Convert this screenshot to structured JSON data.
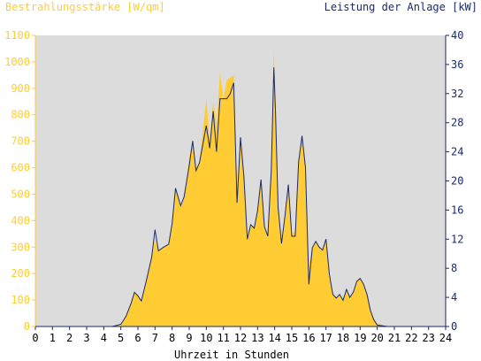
{
  "chart_data": {
    "type": "area",
    "left_axis_title": "Bestrahlungsstärke [W/qm]",
    "right_axis_title": "Leistung der Anlage [kW]",
    "xlabel": "Uhrzeit in Stunden",
    "x_ticks": [
      "0",
      "1",
      "2",
      "3",
      "4",
      "5",
      "6",
      "7",
      "8",
      "9",
      "10",
      "11",
      "12",
      "13",
      "14",
      "15",
      "16",
      "17",
      "18",
      "19",
      "20",
      "21",
      "22",
      "23",
      "24"
    ],
    "y_left_ticks": [
      "0",
      "100",
      "200",
      "300",
      "400",
      "500",
      "600",
      "700",
      "800",
      "900",
      "1000",
      "1100"
    ],
    "y_right_ticks": [
      "0",
      "4",
      "8",
      "12",
      "16",
      "20",
      "24",
      "28",
      "32",
      "36",
      "40"
    ],
    "ylim_left": [
      0,
      1100
    ],
    "ylim_right": [
      0,
      40
    ],
    "xlim": [
      0,
      24
    ],
    "grid": false,
    "colors": {
      "plot_bg": "#dcdcdc",
      "irradiance": "#ffcc33",
      "power": "#1a2a6c",
      "left_axis": "#ffcc33",
      "right_axis": "#1a2a6c",
      "xaxis_text": "#000000"
    },
    "series": [
      {
        "axis": "left",
        "color": "#ffcc33",
        "x": [
          0,
          4.5,
          5,
          5.3,
          5.6,
          5.8,
          6.0,
          6.2,
          6.5,
          6.8,
          7.0,
          7.2,
          7.5,
          7.8,
          8.0,
          8.2,
          8.5,
          8.7,
          9.0,
          9.2,
          9.4,
          9.6,
          9.8,
          10.0,
          10.2,
          10.4,
          10.6,
          10.8,
          11.0,
          11.2,
          11.4,
          11.6,
          11.8,
          12.0,
          12.2,
          12.4,
          12.6,
          12.8,
          13.0,
          13.2,
          13.4,
          13.6,
          13.8,
          13.95,
          14.05,
          14.2,
          14.4,
          14.6,
          14.8,
          15.0,
          15.2,
          15.4,
          15.6,
          15.8,
          16.0,
          16.2,
          16.4,
          16.6,
          16.8,
          17.0,
          17.2,
          17.4,
          17.6,
          17.8,
          18.0,
          18.2,
          18.4,
          18.6,
          18.8,
          19.0,
          19.2,
          19.4,
          19.6,
          19.8,
          20.0,
          20.3,
          20.6,
          21,
          24
        ],
        "values": [
          0,
          0,
          10,
          40,
          90,
          130,
          120,
          100,
          180,
          260,
          330,
          290,
          300,
          310,
          400,
          520,
          450,
          480,
          640,
          700,
          600,
          620,
          740,
          860,
          700,
          850,
          760,
          960,
          860,
          930,
          940,
          950,
          500,
          720,
          540,
          330,
          380,
          380,
          450,
          550,
          380,
          350,
          600,
          1060,
          800,
          450,
          320,
          420,
          530,
          350,
          360,
          620,
          720,
          600,
          230,
          300,
          320,
          300,
          290,
          330,
          200,
          130,
          110,
          120,
          100,
          140,
          110,
          130,
          170,
          180,
          160,
          120,
          70,
          30,
          10,
          5,
          0,
          0,
          0
        ]
      },
      {
        "axis": "right",
        "color": "#1a2a6c",
        "x": [
          0,
          4.5,
          5,
          5.3,
          5.6,
          5.8,
          6.0,
          6.2,
          6.5,
          6.8,
          7.0,
          7.2,
          7.5,
          7.8,
          8.0,
          8.2,
          8.5,
          8.7,
          9.0,
          9.2,
          9.4,
          9.6,
          9.8,
          10.0,
          10.2,
          10.4,
          10.6,
          10.8,
          11.0,
          11.2,
          11.4,
          11.6,
          11.8,
          12.0,
          12.2,
          12.4,
          12.6,
          12.8,
          13.0,
          13.2,
          13.4,
          13.6,
          13.8,
          13.95,
          14.05,
          14.2,
          14.4,
          14.6,
          14.8,
          15.0,
          15.2,
          15.4,
          15.6,
          15.8,
          16.0,
          16.2,
          16.4,
          16.6,
          16.8,
          17.0,
          17.2,
          17.4,
          17.6,
          17.8,
          18.0,
          18.2,
          18.4,
          18.6,
          18.8,
          19.0,
          19.2,
          19.4,
          19.6,
          19.8,
          20.0,
          20.3,
          20.6,
          21,
          24
        ],
        "values": [
          0,
          0,
          0.3,
          1.4,
          3.2,
          4.7,
          4.2,
          3.5,
          6.4,
          9.5,
          13.3,
          10.4,
          10.9,
          11.3,
          14.2,
          19.0,
          16.6,
          17.8,
          22.1,
          25.5,
          21.4,
          22.5,
          25.1,
          27.6,
          24.5,
          29.6,
          24.0,
          31.3,
          31.3,
          31.3,
          32.0,
          33.5,
          17.0,
          26.0,
          20.5,
          12.0,
          14.0,
          13.5,
          15.9,
          20.2,
          13.7,
          12.4,
          21.4,
          35.6,
          29.5,
          16.4,
          11.4,
          15.2,
          19.5,
          12.4,
          12.4,
          22.6,
          26.2,
          21.8,
          5.8,
          10.8,
          11.7,
          10.9,
          10.5,
          12.0,
          7.2,
          4.4,
          3.9,
          4.4,
          3.6,
          5.1,
          4.0,
          4.7,
          6.2,
          6.6,
          5.8,
          4.4,
          2.2,
          0.9,
          0.2,
          0.1,
          0,
          0,
          0
        ]
      }
    ]
  }
}
